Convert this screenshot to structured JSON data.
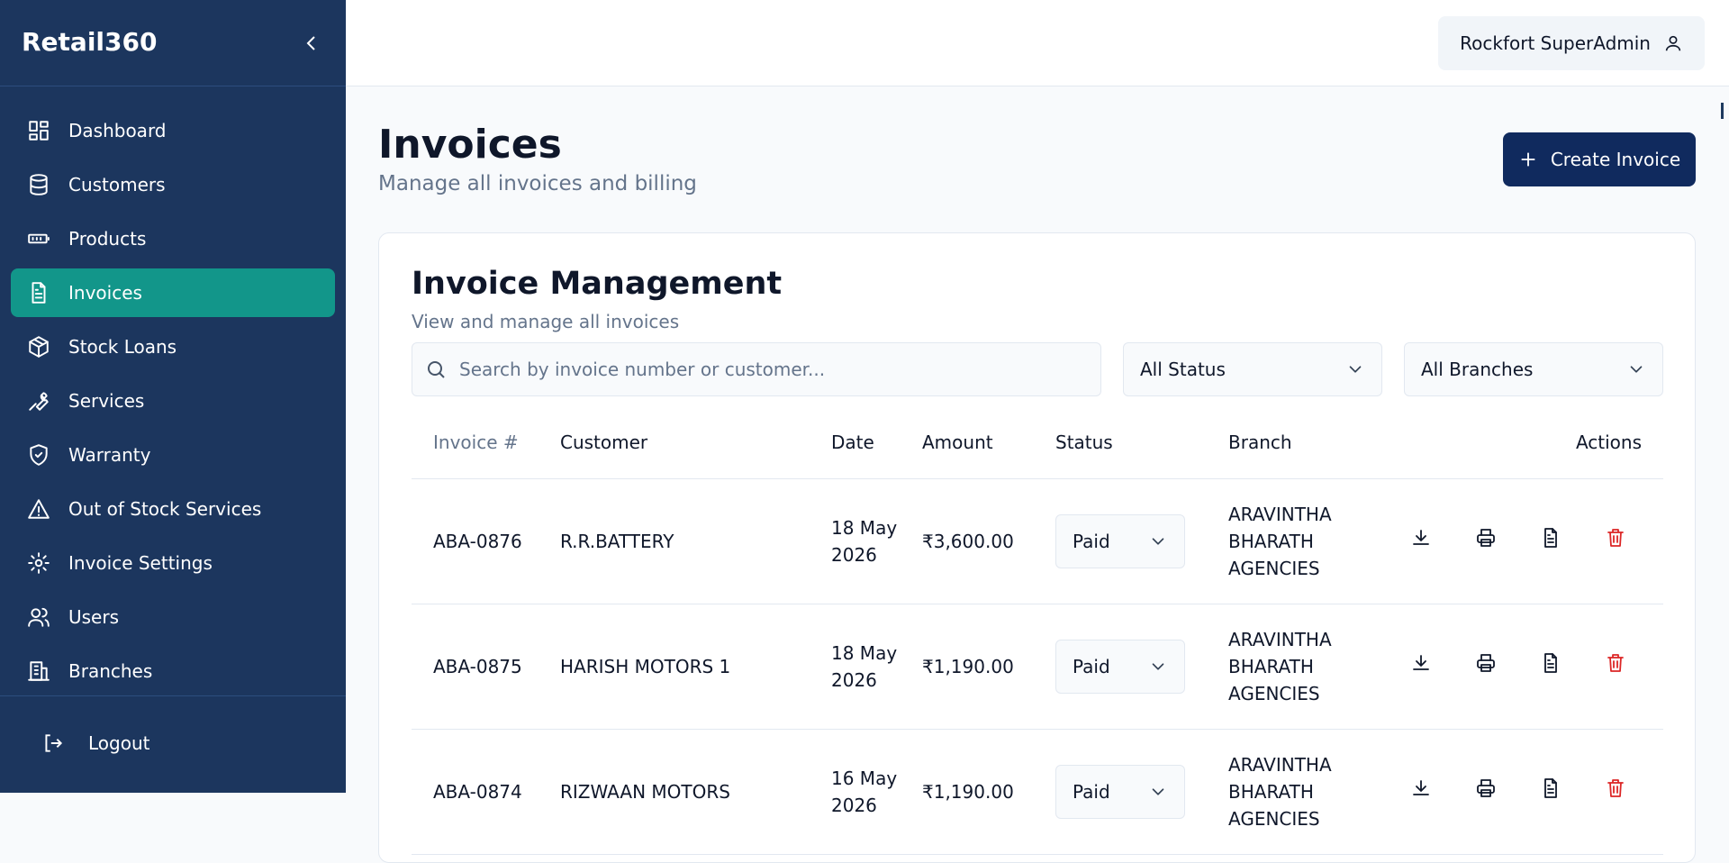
{
  "sidebar": {
    "brand": "Retail360",
    "nav": [
      "Dashboard",
      "Customers",
      "Products",
      "Invoices",
      "Stock Loans",
      "Services",
      "Warranty",
      "Out of Stock Services",
      "Invoice Settings",
      "Users",
      "Branches"
    ],
    "active": 3,
    "logout": "Logout"
  },
  "header": {
    "user": "Rockfort SuperAdmin"
  },
  "page": {
    "title": "Invoices",
    "subtitle": "Manage all invoices and billing",
    "button": "Create Invoice"
  },
  "card": {
    "title": "Invoice Management",
    "subtitle": "View and manage all invoices",
    "search": "Search by invoice number or customer...",
    "filters": [
      "All Status",
      "All Branches"
    ],
    "table": {
      "headers": [
        "Invoice #",
        "Customer",
        "Date",
        "Amount",
        "Status",
        "Branch",
        "Actions"
      ],
      "rows": [
        [
          "ABA-0876",
          "R.R.BATTERY",
          "18 May 2026",
          "₹3,600.00",
          "Paid",
          "ARAVINTHA BHARATH AGENCIES"
        ],
        [
          "ABA-0875",
          "HARISH MOTORS 1",
          "18 May 2026",
          "₹1,190.00",
          "Paid",
          "ARAVINTHA BHARATH AGENCIES"
        ],
        [
          "ABA-0874",
          "RIZWAAN MOTORS",
          "16 May 2026",
          "₹1,190.00",
          "Paid",
          "ARAVINTHA BHARATH AGENCIES"
        ]
      ]
    }
  }
}
